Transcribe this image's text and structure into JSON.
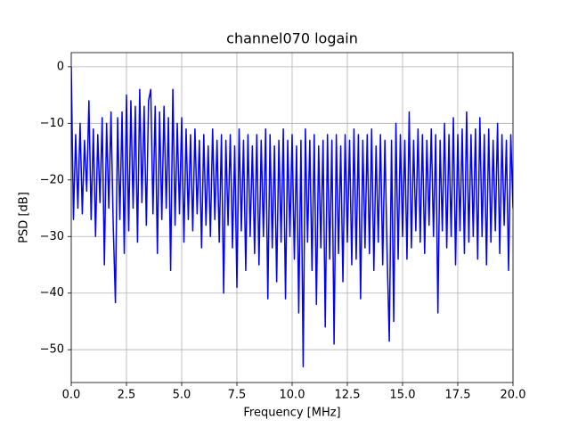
{
  "chart_data": {
    "type": "line",
    "title": "channel070 logain",
    "xlabel": "Frequency [MHz]",
    "ylabel": "PSD [dB]",
    "xlim": [
      0,
      20
    ],
    "ylim": [
      -55.8,
      2.5
    ],
    "xticks": [
      {
        "value": 0,
        "label": "0.0"
      },
      2.5,
      {
        "value": 5,
        "label": "5.0"
      },
      7.5,
      {
        "value": 10,
        "label": "10.0"
      },
      12.5,
      {
        "value": 15,
        "label": "15.0"
      },
      17.5,
      {
        "value": 20,
        "label": "20.0"
      }
    ],
    "yticks": [
      {
        "value": -50,
        "label": "−50"
      },
      {
        "value": -40,
        "label": "−40"
      },
      {
        "value": -30,
        "label": "−30"
      },
      {
        "value": -20,
        "label": "−20"
      },
      {
        "value": -10,
        "label": "−10"
      },
      0
    ],
    "grid": true,
    "series": [
      {
        "color": "#0000ff",
        "x": [
          0,
          0.1,
          0.2,
          0.3,
          0.4,
          0.5,
          0.6,
          0.7,
          0.8,
          0.9,
          1,
          1.1,
          1.2,
          1.3,
          1.4,
          1.5,
          1.6,
          1.7,
          1.8,
          1.9,
          2,
          2.1,
          2.2,
          2.3,
          2.4,
          2.5,
          2.6,
          2.7,
          2.8,
          2.9,
          3,
          3.1,
          3.2,
          3.3,
          3.4,
          3.5,
          3.6,
          3.7,
          3.8,
          3.9,
          4,
          4.1,
          4.2,
          4.3,
          4.4,
          4.5,
          4.6,
          4.7,
          4.8,
          4.9,
          5,
          5.1,
          5.2,
          5.3,
          5.4,
          5.5,
          5.6,
          5.7,
          5.8,
          5.9,
          6,
          6.1,
          6.2,
          6.3,
          6.4,
          6.5,
          6.6,
          6.7,
          6.8,
          6.9,
          7,
          7.1,
          7.2,
          7.3,
          7.4,
          7.5,
          7.6,
          7.7,
          7.8,
          7.9,
          8,
          8.1,
          8.2,
          8.3,
          8.4,
          8.5,
          8.6,
          8.7,
          8.8,
          8.9,
          9,
          9.1,
          9.2,
          9.3,
          9.4,
          9.5,
          9.6,
          9.7,
          9.8,
          9.9,
          10,
          10.1,
          10.2,
          10.3,
          10.4,
          10.5,
          10.6,
          10.7,
          10.8,
          10.9,
          11,
          11.1,
          11.2,
          11.3,
          11.4,
          11.5,
          11.6,
          11.7,
          11.8,
          11.9,
          12,
          12.1,
          12.2,
          12.3,
          12.4,
          12.5,
          12.6,
          12.7,
          12.8,
          12.9,
          13,
          13.1,
          13.2,
          13.3,
          13.4,
          13.5,
          13.6,
          13.7,
          13.8,
          13.9,
          14,
          14.1,
          14.2,
          14.3,
          14.4,
          14.5,
          14.6,
          14.7,
          14.8,
          14.9,
          15,
          15.1,
          15.2,
          15.3,
          15.4,
          15.5,
          15.6,
          15.7,
          15.8,
          15.9,
          16,
          16.1,
          16.2,
          16.3,
          16.4,
          16.5,
          16.6,
          16.7,
          16.8,
          16.9,
          17,
          17.1,
          17.2,
          17.3,
          17.4,
          17.5,
          17.6,
          17.7,
          17.8,
          17.9,
          18,
          18.1,
          18.2,
          18.3,
          18.4,
          18.5,
          18.6,
          18.7,
          18.8,
          18.9,
          19,
          19.1,
          19.2,
          19.3,
          19.4,
          19.5,
          19.6,
          19.7,
          19.8,
          19.9,
          20
        ],
        "values": [
          0,
          -27,
          -12,
          -25,
          -10,
          -26,
          -13,
          -22,
          -6,
          -27,
          -11,
          -30,
          -12,
          -24,
          -9,
          -35,
          -10,
          -25,
          -8,
          -28,
          -41.7,
          -9,
          -27,
          -8,
          -33,
          -5,
          -29,
          -6,
          -25,
          -7,
          -31,
          -4,
          -24,
          -7,
          -28,
          -6,
          -4,
          -26,
          -7,
          -33,
          -8,
          -27,
          -7,
          -25,
          -9,
          -36,
          -4,
          -28,
          -10,
          -26,
          -9,
          -31,
          -11,
          -27,
          -12,
          -29,
          -11,
          -26,
          -13,
          -32,
          -12,
          -28,
          -14,
          -30,
          -11,
          -27,
          -13,
          -31,
          -12,
          -40,
          -13,
          -28,
          -12,
          -32,
          -14,
          -39,
          -11,
          -29,
          -13,
          -36,
          -12,
          -30,
          -14,
          -33,
          -12,
          -35,
          -13,
          -30,
          -11,
          -41,
          -12,
          -32,
          -14,
          -38,
          -13,
          -31,
          -11,
          -41,
          -13,
          -30,
          -12,
          -34,
          -14,
          -43.5,
          -13,
          -53,
          -11,
          -31,
          -13,
          -36,
          -12,
          -42,
          -14,
          -32,
          -13,
          -46,
          -12,
          -34,
          -13,
          -49,
          -12,
          -33,
          -14,
          -38,
          -12,
          -31,
          -13,
          -35,
          -11,
          -34,
          -12,
          -41,
          -13,
          -32,
          -12,
          -33,
          -11,
          -36,
          -14,
          -31,
          -12,
          -35,
          -13,
          -33,
          -48.5,
          -13,
          -45,
          -10,
          -34,
          -12,
          -30,
          -13,
          -34,
          -8,
          -32,
          -13,
          -29,
          -11,
          -31,
          -12,
          -33,
          -13,
          -28,
          -11,
          -30,
          -12,
          -43.5,
          -13,
          -29,
          -10,
          -32,
          -12,
          -30,
          -9,
          -35,
          -12,
          -29,
          -11,
          -33,
          -8,
          -31,
          -12,
          -30,
          -11,
          -34,
          -9,
          -30,
          -12,
          -35,
          -11,
          -31,
          -13,
          -29,
          -10,
          -33,
          -12,
          -28,
          -13,
          -36,
          -12,
          -25
        ]
      }
    ]
  }
}
